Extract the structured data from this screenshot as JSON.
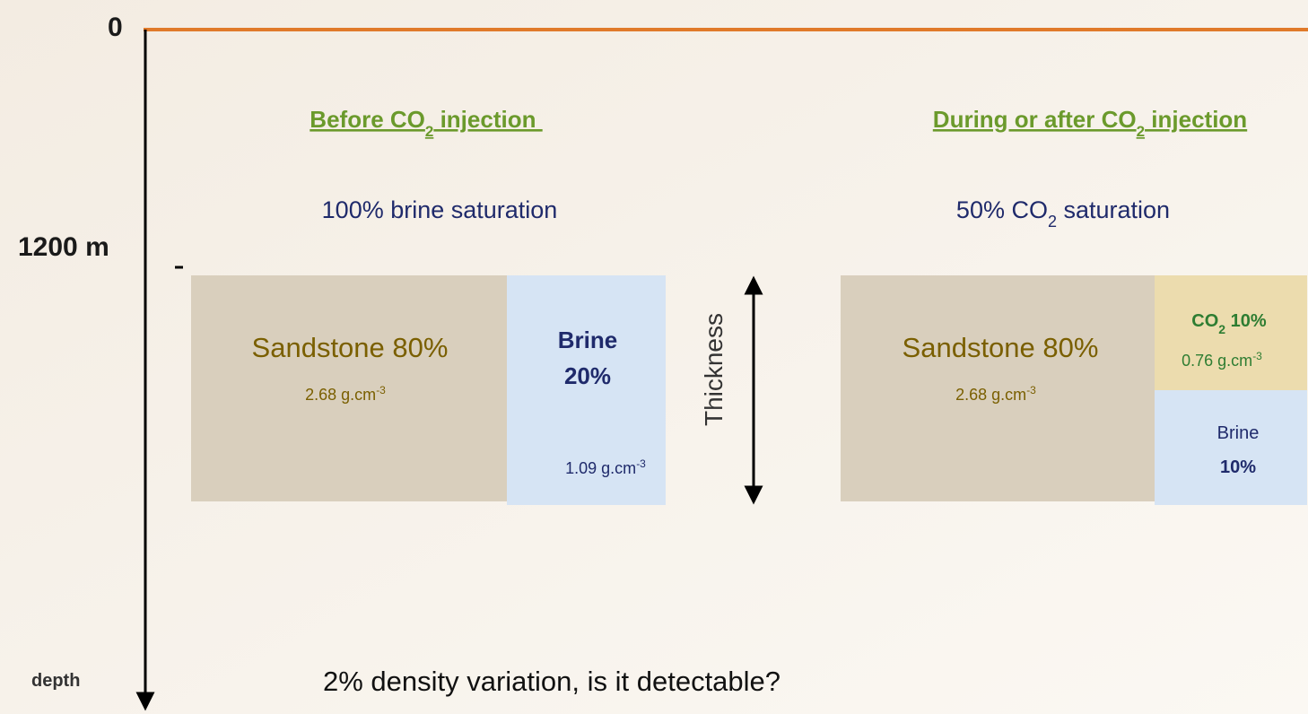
{
  "axis": {
    "top_label": "0",
    "mark_label": "1200 m",
    "axis_label": "depth"
  },
  "before": {
    "heading": [
      "Before CO",
      "2",
      " injection "
    ],
    "saturation": "100% brine saturation",
    "sandstone": {
      "label": "Sandstone 80%",
      "density": [
        "2.68 g.cm",
        "-3"
      ]
    },
    "brine": {
      "label": [
        "Brine",
        "20%"
      ],
      "density": [
        "1.09 g.cm",
        "-3"
      ]
    }
  },
  "after": {
    "heading": [
      "During or after CO",
      "2",
      " injection"
    ],
    "saturation": [
      "50% CO",
      "2",
      " saturation"
    ],
    "sandstone": {
      "label": "Sandstone 80%",
      "density": [
        "2.68 g.cm",
        "-3"
      ]
    },
    "co2": {
      "label": [
        "CO",
        "2",
        " 10%"
      ],
      "density": [
        "0.76 g.cm",
        "-3"
      ]
    },
    "brine": {
      "label": [
        "Brine",
        "10%"
      ]
    }
  },
  "thickness": "Thickness",
  "question": "2% density variation, is it detectable?"
}
